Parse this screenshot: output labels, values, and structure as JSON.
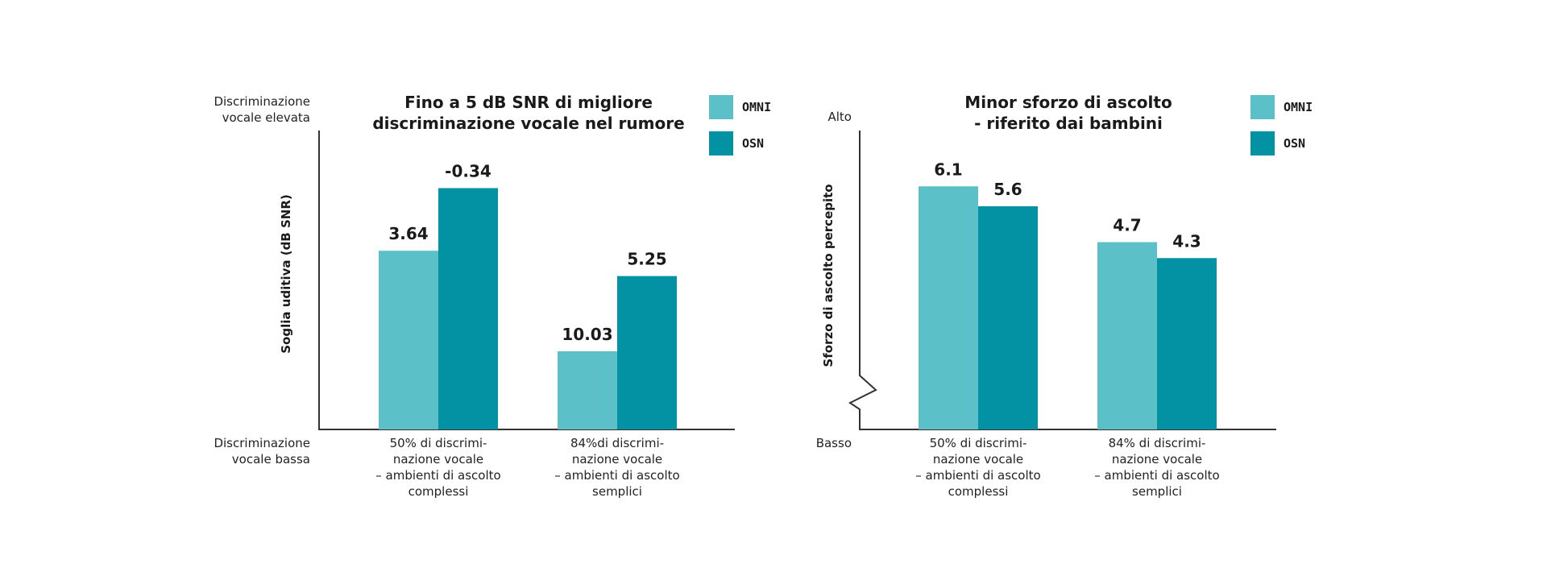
{
  "colors": {
    "omni": "#5bc0c8",
    "osn": "#0392a3",
    "axis": "#333333"
  },
  "chart_data": [
    {
      "type": "bar",
      "title": [
        "Fino a 5 dB SNR di migliore",
        "discriminazione vocale nel rumore"
      ],
      "ylabel": "Soglia uditiva (dB SNR)",
      "top_label": [
        "Discriminazione",
        "vocale elevata"
      ],
      "bottom_label": [
        "Discriminazione",
        "vocale bassa"
      ],
      "categories": [
        [
          "50% di discrimi-",
          "nazione vocale",
          "– ambienti di ascolto",
          "complessi"
        ],
        [
          "84%di discrimi-",
          "nazione vocale",
          "– ambienti di ascolto",
          "semplici"
        ]
      ],
      "series": [
        {
          "name": "OMNI",
          "values": [
            3.64,
            10.03
          ],
          "labels": [
            "3.64",
            "10.03"
          ]
        },
        {
          "name": "OSN",
          "values": [
            -0.34,
            5.25
          ],
          "labels": [
            "-0.34",
            "5.25"
          ]
        }
      ],
      "inverted_axis": true,
      "ylim": [
        15,
        -4
      ],
      "legend": "top-right",
      "grid": false
    },
    {
      "type": "bar",
      "title": [
        "Minor sforzo di ascolto",
        "- riferito dai bambini"
      ],
      "ylabel": "Sforzo di ascolto percepito",
      "top_label": [
        "Alto"
      ],
      "bottom_label": [
        "Basso"
      ],
      "categories": [
        [
          "50% di discrimi-",
          "nazione vocale",
          "– ambienti di ascolto",
          "complessi"
        ],
        [
          "84% di discrimi-",
          "nazione vocale",
          "– ambienti di ascolto",
          "semplici"
        ]
      ],
      "series": [
        {
          "name": "OMNI",
          "values": [
            6.1,
            4.7
          ],
          "labels": [
            "6.1",
            "4.7"
          ]
        },
        {
          "name": "OSN",
          "values": [
            5.6,
            4.3
          ],
          "labels": [
            "5.6",
            "4.3"
          ]
        }
      ],
      "inverted_axis": false,
      "ylim": [
        0,
        7.5
      ],
      "axis_break": true,
      "legend": "top-right",
      "grid": false
    }
  ]
}
